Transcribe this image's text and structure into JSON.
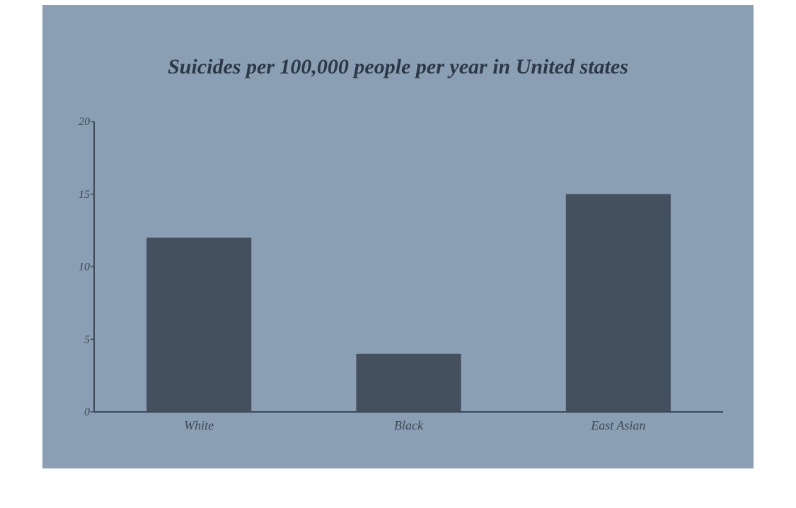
{
  "colors": {
    "panel_background": "#8a9fb4",
    "bar_fill": "#45505f",
    "axis": "#3e4a58",
    "title": "#2c3847"
  },
  "chart_data": {
    "type": "bar",
    "title": "Suicides per 100,000 people per year in United states",
    "categories": [
      "White",
      "Black",
      "East Asian"
    ],
    "values": [
      12,
      4,
      15
    ],
    "xlabel": "",
    "ylabel": "",
    "ylim": [
      0,
      20
    ],
    "yticks": [
      "0",
      "5",
      "10",
      "15",
      "20"
    ],
    "grid": false,
    "legend": "none"
  }
}
